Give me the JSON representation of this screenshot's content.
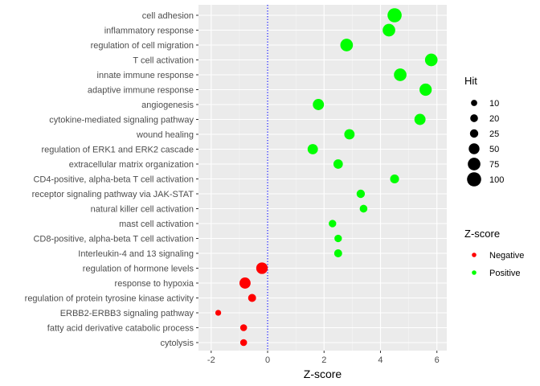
{
  "chart_data": {
    "type": "scatter",
    "title": "",
    "xlabel": "Z-score",
    "ylabel": "",
    "xlim": [
      -2.45,
      6.35
    ],
    "x_ticks": [
      -2,
      0,
      2,
      4,
      6
    ],
    "reference_line": {
      "x": 0,
      "style": "dotted",
      "color": "#0000ff"
    },
    "grid": true,
    "panel_background": "#ebebeb",
    "categories": [
      "cell adhesion",
      "inflammatory response",
      "regulation of cell migration",
      "T cell activation",
      "innate immune response",
      "adaptive immune response",
      "angiogenesis",
      "cytokine-mediated signaling pathway",
      "wound healing",
      "regulation of ERK1 and ERK2 cascade",
      "extracellular matrix organization",
      "CD4-positive, alpha-beta T cell activation",
      "receptor signaling pathway via JAK-STAT",
      "natural killer cell activation",
      "mast cell activation",
      "CD8-positive, alpha-beta T cell activation",
      "Interleukin-4 and 13 signaling",
      "regulation of hormone levels",
      "response to hypoxia",
      "regulation of protein tyrosine kinase activity",
      "ERBB2-ERBB3 signaling pathway",
      "fatty acid derivative catabolic process",
      "cytolysis"
    ],
    "points": [
      {
        "term": "cell adhesion",
        "zscore": 4.5,
        "hit": 100,
        "group": "Positive"
      },
      {
        "term": "inflammatory response",
        "zscore": 4.3,
        "hit": 75,
        "group": "Positive"
      },
      {
        "term": "regulation of cell migration",
        "zscore": 2.8,
        "hit": 75,
        "group": "Positive"
      },
      {
        "term": "T cell activation",
        "zscore": 5.8,
        "hit": 75,
        "group": "Positive"
      },
      {
        "term": "innate immune response",
        "zscore": 4.7,
        "hit": 75,
        "group": "Positive"
      },
      {
        "term": "adaptive immune response",
        "zscore": 5.6,
        "hit": 70,
        "group": "Positive"
      },
      {
        "term": "angiogenesis",
        "zscore": 1.8,
        "hit": 55,
        "group": "Positive"
      },
      {
        "term": "cytokine-mediated signaling pathway",
        "zscore": 5.4,
        "hit": 55,
        "group": "Positive"
      },
      {
        "term": "wound healing",
        "zscore": 2.9,
        "hit": 45,
        "group": "Positive"
      },
      {
        "term": "regulation of ERK1 and ERK2 cascade",
        "zscore": 1.6,
        "hit": 45,
        "group": "Positive"
      },
      {
        "term": "extracellular matrix organization",
        "zscore": 2.5,
        "hit": 35,
        "group": "Positive"
      },
      {
        "term": "CD4-positive, alpha-beta T cell activation",
        "zscore": 4.5,
        "hit": 30,
        "group": "Positive"
      },
      {
        "term": "receptor signaling pathway via JAK-STAT",
        "zscore": 3.3,
        "hit": 25,
        "group": "Positive"
      },
      {
        "term": "natural killer cell activation",
        "zscore": 3.4,
        "hit": 20,
        "group": "Positive"
      },
      {
        "term": "mast cell activation",
        "zscore": 2.3,
        "hit": 18,
        "group": "Positive"
      },
      {
        "term": "CD8-positive, alpha-beta T cell activation",
        "zscore": 2.5,
        "hit": 18,
        "group": "Positive"
      },
      {
        "term": "Interleukin-4 and 13 signaling",
        "zscore": 2.5,
        "hit": 22,
        "group": "Positive"
      },
      {
        "term": "regulation of hormone levels",
        "zscore": -0.2,
        "hit": 60,
        "group": "Negative"
      },
      {
        "term": "response to hypoxia",
        "zscore": -0.8,
        "hit": 55,
        "group": "Negative"
      },
      {
        "term": "regulation of protein tyrosine kinase activity",
        "zscore": -0.55,
        "hit": 22,
        "group": "Negative"
      },
      {
        "term": "ERBB2-ERBB3 signaling pathway",
        "zscore": -1.75,
        "hit": 8,
        "group": "Negative"
      },
      {
        "term": "fatty acid derivative catabolic process",
        "zscore": -0.85,
        "hit": 14,
        "group": "Negative"
      },
      {
        "term": "cytolysis",
        "zscore": -0.85,
        "hit": 14,
        "group": "Negative"
      }
    ],
    "legend_size": {
      "title": "Hit",
      "values": [
        10,
        20,
        25,
        50,
        75,
        100
      ],
      "labels": [
        "10",
        "20",
        "25",
        "50",
        "75",
        "100"
      ]
    },
    "legend_color": {
      "title": "Z-score",
      "entries": [
        {
          "label": "Negative",
          "color": "#ff0000"
        },
        {
          "label": "Positive",
          "color": "#00ff00"
        }
      ]
    },
    "colors": {
      "Negative": "#ff0000",
      "Positive": "#00ff00"
    },
    "legend_position": "right"
  }
}
